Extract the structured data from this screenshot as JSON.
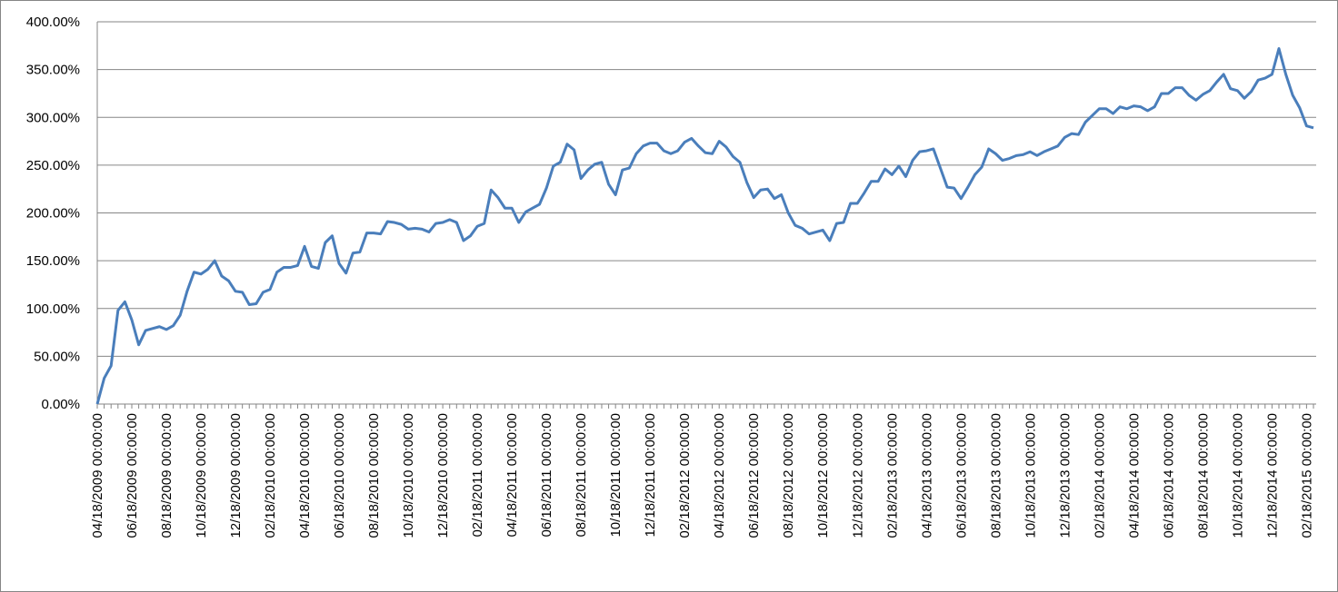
{
  "chart_data": {
    "type": "line",
    "categories": [
      "04/18/2009 00:00:00",
      null,
      null,
      null,
      null,
      "06/18/2009 00:00:00",
      null,
      null,
      null,
      null,
      "08/18/2009 00:00:00",
      null,
      null,
      null,
      null,
      "10/18/2009 00:00:00",
      null,
      null,
      null,
      null,
      "12/18/2009 00:00:00",
      null,
      null,
      null,
      null,
      "02/18/2010 00:00:00",
      null,
      null,
      null,
      null,
      "04/18/2010 00:00:00",
      null,
      null,
      null,
      null,
      "06/18/2010 00:00:00",
      null,
      null,
      null,
      null,
      "08/18/2010 00:00:00",
      null,
      null,
      null,
      null,
      "10/18/2010 00:00:00",
      null,
      null,
      null,
      null,
      "12/18/2010 00:00:00",
      null,
      null,
      null,
      null,
      "02/18/2011 00:00:00",
      null,
      null,
      null,
      null,
      "04/18/2011 00:00:00",
      null,
      null,
      null,
      null,
      "06/18/2011 00:00:00",
      null,
      null,
      null,
      null,
      "08/18/2011 00:00:00",
      null,
      null,
      null,
      null,
      "10/18/2011 00:00:00",
      null,
      null,
      null,
      null,
      "12/18/2011 00:00:00",
      null,
      null,
      null,
      null,
      "02/18/2012 00:00:00",
      null,
      null,
      null,
      null,
      "04/18/2012 00:00:00",
      null,
      null,
      null,
      null,
      "06/18/2012 00:00:00",
      null,
      null,
      null,
      null,
      "08/18/2012 00:00:00",
      null,
      null,
      null,
      null,
      "10/18/2012 00:00:00",
      null,
      null,
      null,
      null,
      "12/18/2012 00:00:00",
      null,
      null,
      null,
      null,
      "02/18/2013 00:00:00",
      null,
      null,
      null,
      null,
      "04/18/2013 00:00:00",
      null,
      null,
      null,
      null,
      "06/18/2013 00:00:00",
      null,
      null,
      null,
      null,
      "08/18/2013 00:00:00",
      null,
      null,
      null,
      null,
      "10/18/2013 00:00:00",
      null,
      null,
      null,
      null,
      "12/18/2013 00:00:00",
      null,
      null,
      null,
      null,
      "02/18/2014 00:00:00",
      null,
      null,
      null,
      null,
      "04/18/2014 00:00:00",
      null,
      null,
      null,
      null,
      "06/18/2014 00:00:00",
      null,
      null,
      null,
      null,
      "08/18/2014 00:00:00",
      null,
      null,
      null,
      null,
      "10/18/2014 00:00:00",
      null,
      null,
      null,
      null,
      "12/18/2014 00:00:00",
      null,
      null,
      null,
      null,
      "02/18/2015 00:00:00",
      null
    ],
    "values": [
      0,
      27,
      40,
      98,
      107,
      88,
      62,
      77,
      79,
      81,
      78,
      82,
      93,
      118,
      138,
      136,
      141,
      150,
      134,
      129,
      118,
      117,
      104,
      105,
      117,
      120,
      138,
      143,
      143,
      145,
      165,
      144,
      142,
      169,
      176,
      147,
      137,
      158,
      159,
      179,
      179,
      178,
      191,
      190,
      188,
      183,
      184,
      183,
      180,
      189,
      190,
      193,
      190,
      171,
      176,
      186,
      189,
      224,
      216,
      205,
      205,
      190,
      201,
      205,
      209,
      226,
      249,
      253,
      272,
      266,
      236,
      245,
      251,
      253,
      230,
      219,
      245,
      247,
      262,
      270,
      273,
      273,
      265,
      262,
      265,
      274,
      278,
      270,
      263,
      262,
      275,
      269,
      259,
      253,
      232,
      216,
      224,
      225,
      215,
      219,
      200,
      187,
      184,
      178,
      180,
      182,
      171,
      189,
      190,
      210,
      210,
      221,
      233,
      233,
      246,
      240,
      249,
      238,
      255,
      264,
      265,
      267,
      247,
      227,
      226,
      215,
      227,
      240,
      248,
      267,
      262,
      255,
      257,
      260,
      261,
      264,
      260,
      264,
      267,
      270,
      279,
      283,
      282,
      295,
      302,
      309,
      309,
      304,
      311,
      309,
      312,
      311,
      307,
      311,
      325,
      325,
      331,
      331,
      323,
      318,
      324,
      328,
      337,
      345,
      330,
      328,
      320,
      327,
      339,
      341,
      345,
      372,
      345,
      323,
      310,
      291,
      289
    ],
    "color": "#4a7ebb",
    "ylim": [
      0,
      400
    ],
    "yticks": [
      {
        "value": 0,
        "label": "0.00%"
      },
      {
        "value": 50,
        "label": "50.00%"
      },
      {
        "value": 100,
        "label": "100.00%"
      },
      {
        "value": 150,
        "label": "150.00%"
      },
      {
        "value": 200,
        "label": "200.00%"
      },
      {
        "value": 250,
        "label": "250.00%"
      },
      {
        "value": 300,
        "label": "300.00%"
      },
      {
        "value": 350,
        "label": "350.00%"
      },
      {
        "value": 400,
        "label": "400.00%"
      }
    ],
    "grid": true
  }
}
